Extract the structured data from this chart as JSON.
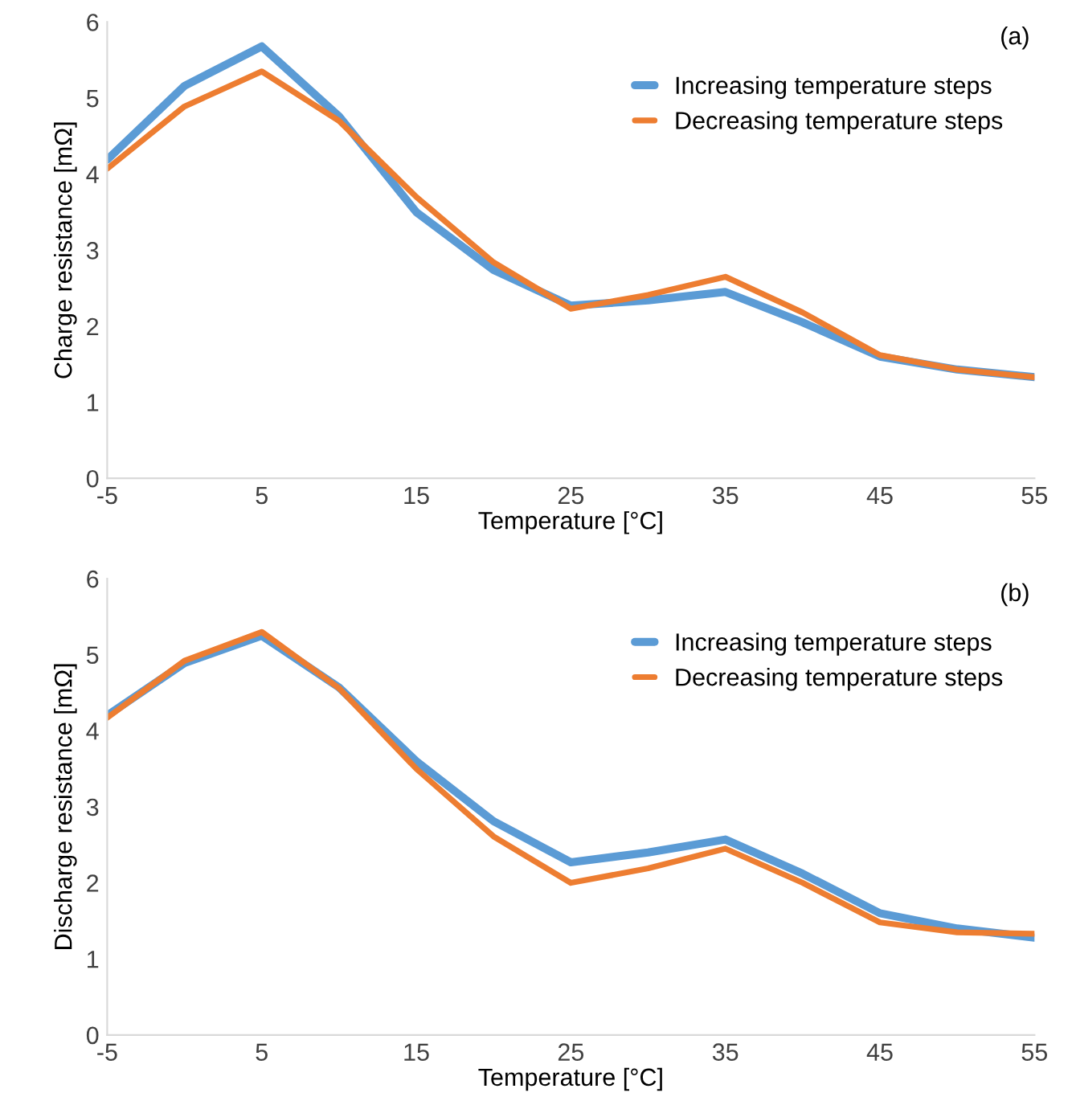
{
  "chart_data": [
    {
      "type": "line",
      "xlabel": "Temperature [°C]",
      "ylabel": "Charge resistance [mΩ]",
      "annotations": [
        "(a)"
      ],
      "x": [
        -5,
        0,
        5,
        10,
        15,
        20,
        25,
        30,
        35,
        40,
        45,
        50,
        55
      ],
      "series": [
        {
          "name": "Increasing temperature steps",
          "color": "#5b9bd5",
          "values": [
            4.19,
            5.16,
            5.68,
            4.76,
            3.5,
            2.74,
            2.27,
            2.34,
            2.45,
            2.05,
            1.6,
            1.43,
            1.33
          ]
        },
        {
          "name": "Decreasing temperature steps",
          "color": "#ed7d31",
          "values": [
            4.07,
            4.89,
            5.35,
            4.7,
            3.7,
            2.84,
            2.23,
            2.41,
            2.65,
            2.18,
            1.62,
            1.43,
            1.33
          ]
        }
      ],
      "xlim": [
        -5,
        55
      ],
      "xticks": [
        -5,
        5,
        15,
        25,
        35,
        45,
        55
      ],
      "ylim": [
        0,
        6
      ],
      "yticks": [
        0,
        1,
        2,
        3,
        4,
        5,
        6
      ],
      "grid": false,
      "legend": "top right",
      "marker": "none",
      "line_style": "solid"
    },
    {
      "type": "line",
      "xlabel": "Temperature [°C]",
      "ylabel": "Discharge resistance [mΩ]",
      "annotations": [
        "(b)"
      ],
      "x": [
        -5,
        0,
        5,
        10,
        15,
        20,
        25,
        30,
        35,
        40,
        45,
        50,
        55
      ],
      "series": [
        {
          "name": "Increasing temperature steps",
          "color": "#5b9bd5",
          "values": [
            4.2,
            4.89,
            5.25,
            4.57,
            3.6,
            2.81,
            2.27,
            2.4,
            2.57,
            2.12,
            1.6,
            1.4,
            1.28
          ]
        },
        {
          "name": "Decreasing temperature steps",
          "color": "#ed7d31",
          "values": [
            4.17,
            4.92,
            5.3,
            4.56,
            3.5,
            2.61,
            2.0,
            2.19,
            2.45,
            2.0,
            1.48,
            1.35,
            1.33
          ]
        }
      ],
      "xlim": [
        -5,
        55
      ],
      "xticks": [
        -5,
        5,
        15,
        25,
        35,
        45,
        55
      ],
      "ylim": [
        0,
        6
      ],
      "yticks": [
        0,
        1,
        2,
        3,
        4,
        5,
        6
      ],
      "grid": false,
      "legend": "top right",
      "marker": "none",
      "line_style": "solid"
    }
  ]
}
